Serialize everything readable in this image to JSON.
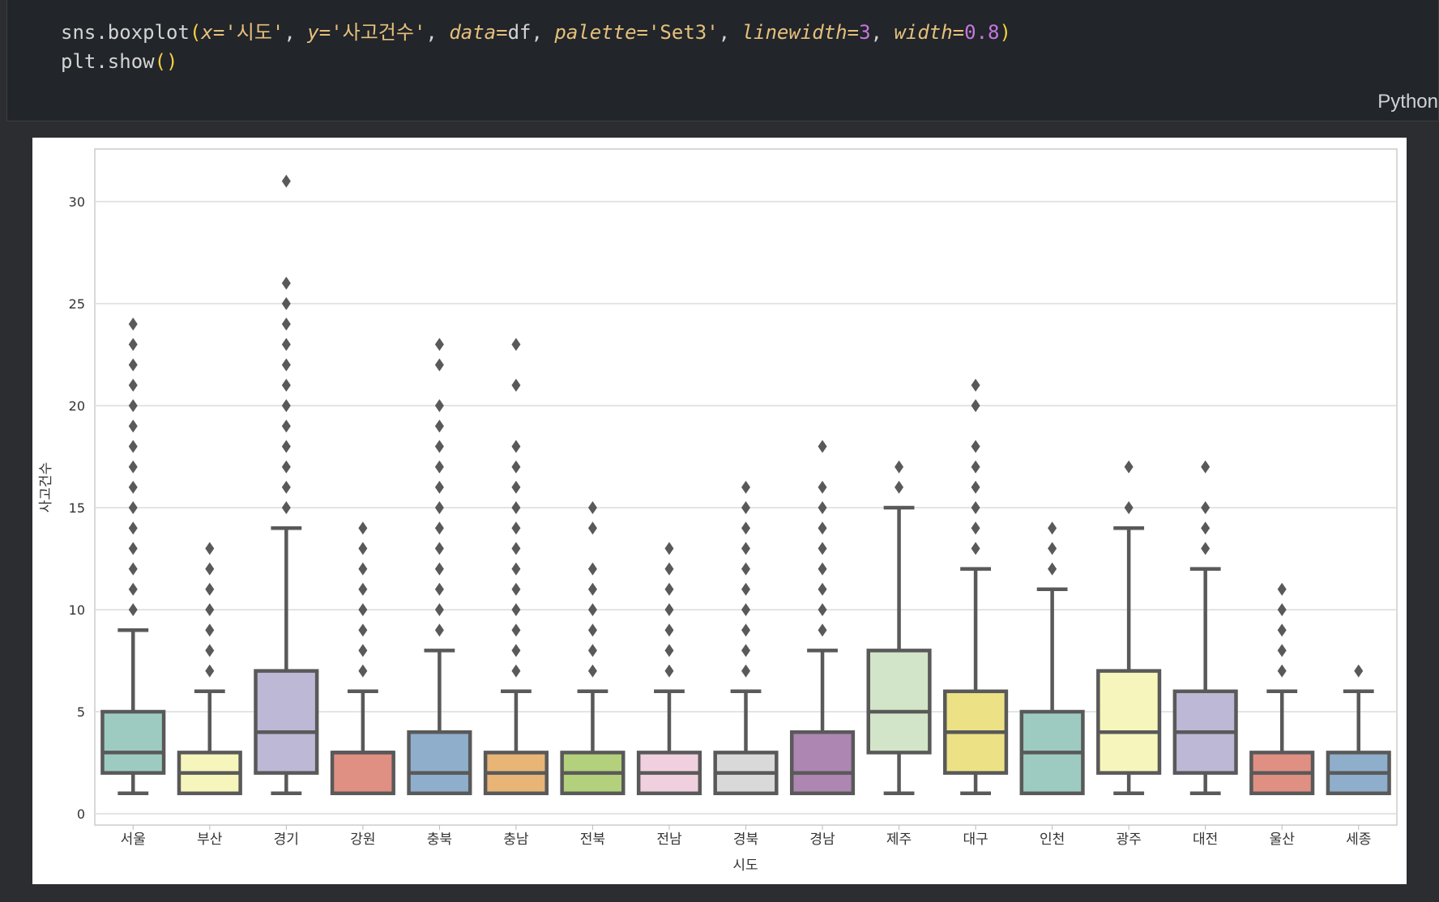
{
  "code": {
    "line1": {
      "fn": "sns.boxplot",
      "open": "(",
      "x_kw": "x=",
      "x_val": "'시도'",
      "sep1": ", ",
      "y_kw": "y=",
      "y_val": "'사고건수'",
      "sep2": ", ",
      "data_kw": "data=",
      "data_val": "df",
      "sep3": ", ",
      "palette_kw": "palette=",
      "palette_val": "'Set3'",
      "sep4": ", ",
      "lw_kw": "linewidth=",
      "lw_val": "3",
      "sep5": ", ",
      "width_kw": "width=",
      "width_val": "0.8",
      "close": ")"
    },
    "line2": {
      "fn": "plt.show",
      "parens": "()"
    },
    "language_label": "Python"
  },
  "chart_data": {
    "type": "boxplot",
    "xlabel": "시도",
    "ylabel": "사고건수",
    "ylim": [
      0,
      32
    ],
    "yticks": [
      0,
      5,
      10,
      15,
      20,
      25,
      30
    ],
    "grid": true,
    "categories": [
      "서울",
      "부산",
      "경기",
      "강원",
      "충북",
      "충남",
      "전북",
      "전남",
      "경북",
      "경남",
      "제주",
      "대구",
      "인천",
      "광주",
      "대전",
      "울산",
      "세종"
    ],
    "boxes": [
      {
        "name": "서울",
        "color": "#9dcbc1",
        "q1": 2,
        "median": 3,
        "q3": 5,
        "whislo": 1,
        "whishi": 9,
        "fliers": [
          10,
          11,
          12,
          13,
          14,
          15,
          16,
          17,
          18,
          19,
          20,
          21,
          22,
          23,
          24
        ]
      },
      {
        "name": "부산",
        "color": "#f6f5bc",
        "q1": 1,
        "median": 2,
        "q3": 3,
        "whislo": 1,
        "whishi": 6,
        "fliers": [
          7,
          8,
          9,
          10,
          11,
          12,
          13
        ]
      },
      {
        "name": "경기",
        "color": "#bcb8d5",
        "q1": 2,
        "median": 4,
        "q3": 7,
        "whislo": 1,
        "whishi": 14,
        "fliers": [
          15,
          16,
          17,
          18,
          19,
          20,
          21,
          22,
          23,
          24,
          25,
          26,
          31
        ]
      },
      {
        "name": "강원",
        "color": "#e08f83",
        "q1": 1,
        "median": 3,
        "q3": 3,
        "whislo": 1,
        "whishi": 6,
        "fliers": [
          7,
          8,
          9,
          10,
          11,
          12,
          13,
          14
        ]
      },
      {
        "name": "충북",
        "color": "#8eaecb",
        "q1": 1,
        "median": 2,
        "q3": 4,
        "whislo": 1,
        "whishi": 8,
        "fliers": [
          9,
          10,
          11,
          12,
          13,
          14,
          15,
          16,
          17,
          18,
          19,
          20,
          22,
          23
        ]
      },
      {
        "name": "충남",
        "color": "#e8b577",
        "q1": 1,
        "median": 2,
        "q3": 3,
        "whislo": 1,
        "whishi": 6,
        "fliers": [
          7,
          8,
          9,
          10,
          11,
          12,
          13,
          14,
          15,
          16,
          17,
          18,
          21,
          23
        ]
      },
      {
        "name": "전북",
        "color": "#b3d17c",
        "q1": 1,
        "median": 2,
        "q3": 3,
        "whislo": 1,
        "whishi": 6,
        "fliers": [
          7,
          8,
          9,
          10,
          11,
          12,
          14,
          15
        ]
      },
      {
        "name": "전남",
        "color": "#f0cfde",
        "q1": 1,
        "median": 2,
        "q3": 3,
        "whislo": 1,
        "whishi": 6,
        "fliers": [
          7,
          8,
          9,
          10,
          11,
          12,
          13
        ]
      },
      {
        "name": "경북",
        "color": "#d9d9d9",
        "q1": 1,
        "median": 2,
        "q3": 3,
        "whislo": 1,
        "whishi": 6,
        "fliers": [
          7,
          8,
          9,
          10,
          11,
          12,
          13,
          14,
          15,
          16
        ]
      },
      {
        "name": "경남",
        "color": "#ad86b2",
        "q1": 1,
        "median": 2,
        "q3": 4,
        "whislo": 1,
        "whishi": 8,
        "fliers": [
          9,
          10,
          11,
          12,
          13,
          14,
          15,
          16,
          18
        ]
      },
      {
        "name": "제주",
        "color": "#d3e5c8",
        "q1": 3,
        "median": 5,
        "q3": 8,
        "whislo": 1,
        "whishi": 15,
        "fliers": [
          16,
          17
        ]
      },
      {
        "name": "대구",
        "color": "#ece185",
        "q1": 2,
        "median": 4,
        "q3": 6,
        "whislo": 1,
        "whishi": 12,
        "fliers": [
          13,
          14,
          15,
          16,
          17,
          18,
          20,
          21
        ]
      },
      {
        "name": "인천",
        "color": "#9dcbc1",
        "q1": 1,
        "median": 3,
        "q3": 5,
        "whislo": 1,
        "whishi": 11,
        "fliers": [
          12,
          13,
          14
        ]
      },
      {
        "name": "광주",
        "color": "#f6f5bc",
        "q1": 2,
        "median": 4,
        "q3": 7,
        "whislo": 1,
        "whishi": 14,
        "fliers": [
          15,
          17
        ]
      },
      {
        "name": "대전",
        "color": "#bcb8d5",
        "q1": 2,
        "median": 4,
        "q3": 6,
        "whislo": 1,
        "whishi": 12,
        "fliers": [
          13,
          14,
          15,
          17
        ]
      },
      {
        "name": "울산",
        "color": "#e08f83",
        "q1": 1,
        "median": 2,
        "q3": 3,
        "whislo": 1,
        "whishi": 6,
        "fliers": [
          7,
          8,
          9,
          10,
          11
        ]
      },
      {
        "name": "세종",
        "color": "#8eaecb",
        "q1": 1,
        "median": 2,
        "q3": 3,
        "whislo": 1,
        "whishi": 6,
        "fliers": [
          7
        ]
      }
    ]
  }
}
